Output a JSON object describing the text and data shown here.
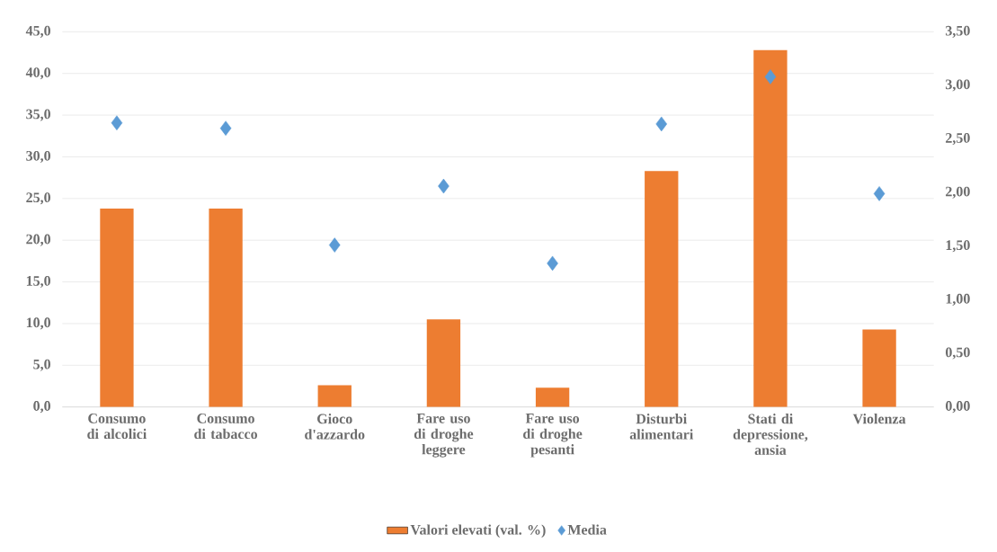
{
  "chart_data": {
    "type": "bar",
    "categories": [
      "Consumo di alcolici",
      "Consumo di tabacco",
      "Gioco d'azzardo",
      "Fare uso di droghe leggere",
      "Fare uso di droghe pesanti",
      "Disturbi alimentari",
      "Stati di depressione, ansia",
      "Violenza"
    ],
    "series": [
      {
        "name": "Valori elevati (val. %)",
        "color": "#ed7d31",
        "values": [
          23.8,
          23.8,
          2.6,
          10.5,
          2.3,
          28.3,
          42.8,
          9.3
        ]
      },
      {
        "name": "Media",
        "type": "scatter",
        "axis": "y2",
        "marker": "diamond",
        "color": "#5b9bd5",
        "values": [
          2.65,
          2.6,
          1.51,
          2.06,
          1.34,
          2.64,
          3.08,
          1.99
        ]
      }
    ],
    "ylim": [
      0,
      45
    ],
    "yticks": [
      {
        "value": 0,
        "label": "0,0"
      },
      {
        "value": 5,
        "label": "5,0"
      },
      {
        "value": 10,
        "label": "10,0"
      },
      {
        "value": 15,
        "label": "15,0"
      },
      {
        "value": 20,
        "label": "20,0"
      },
      {
        "value": 25,
        "label": "25,0"
      },
      {
        "value": 30,
        "label": "30,0"
      },
      {
        "value": 35,
        "label": "35,0"
      },
      {
        "value": 40,
        "label": "40,0"
      },
      {
        "value": 45,
        "label": "45,0"
      }
    ],
    "y2lim": [
      0,
      3.5
    ],
    "y2ticks": [
      {
        "value": 0,
        "label": "0,00"
      },
      {
        "value": 0.5,
        "label": "0,50"
      },
      {
        "value": 1,
        "label": "1,00"
      },
      {
        "value": 1.5,
        "label": "1,50"
      },
      {
        "value": 2,
        "label": "2,00"
      },
      {
        "value": 2.5,
        "label": "2,50"
      },
      {
        "value": 3,
        "label": "3,00"
      },
      {
        "value": 3.5,
        "label": "3,50"
      }
    ],
    "grid": "y",
    "legend": "bottom"
  }
}
